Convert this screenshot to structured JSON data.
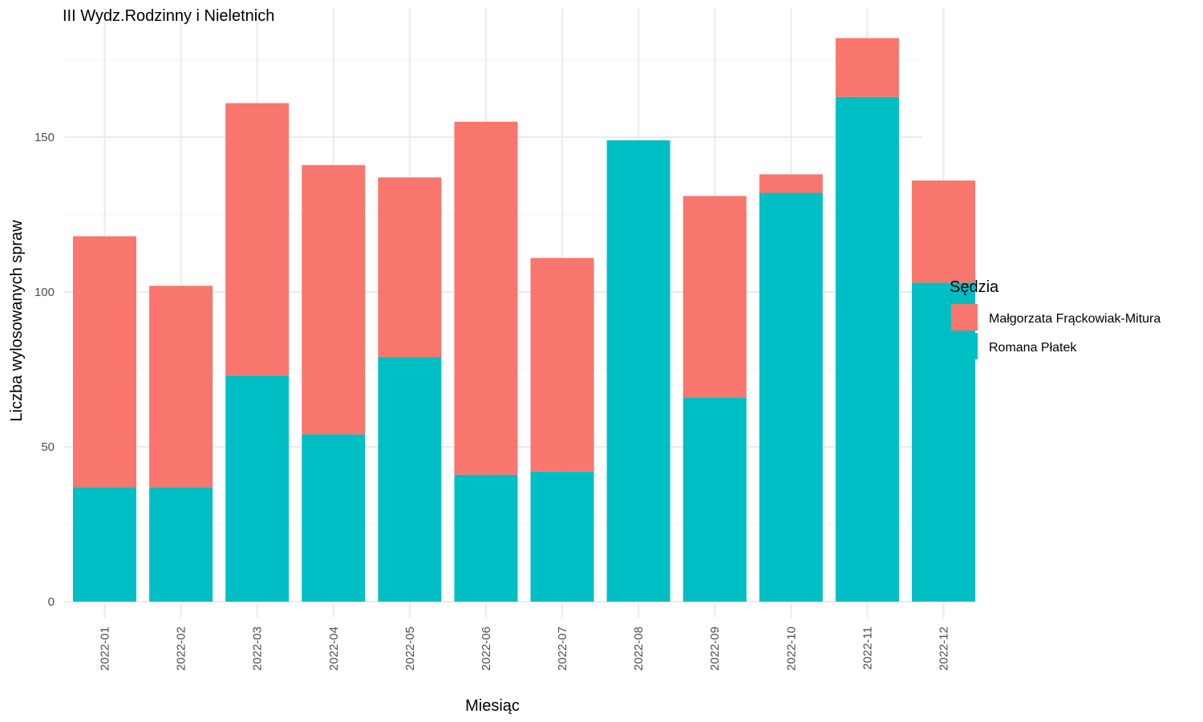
{
  "chart_data": {
    "type": "bar",
    "stacked": true,
    "title": "III Wydz.Rodzinny i Nieletnich",
    "xlabel": "Miesiąc",
    "ylabel": "Liczba wylosowanych spraw",
    "categories": [
      "2022-01",
      "2022-02",
      "2022-03",
      "2022-04",
      "2022-05",
      "2022-06",
      "2022-07",
      "2022-08",
      "2022-09",
      "2022-10",
      "2022-11",
      "2022-12"
    ],
    "series": [
      {
        "name": "Romana Płatek",
        "color": "#00BFC4",
        "values": [
          37,
          37,
          73,
          54,
          79,
          41,
          42,
          149,
          66,
          132,
          163,
          103
        ]
      },
      {
        "name": "Małgorzata Frąckowiak-Mitura",
        "color": "#F8766D",
        "values": [
          81,
          65,
          88,
          87,
          58,
          114,
          69,
          0,
          65,
          6,
          19,
          33
        ]
      }
    ],
    "ylim": [
      0,
      188
    ],
    "yticks": [
      0,
      50,
      100,
      150
    ],
    "grid": true,
    "legend": {
      "title": "Sędzia",
      "position": "right",
      "entries": [
        {
          "label": "Małgorzata Frąckowiak-Mitura",
          "color": "#F8766D"
        },
        {
          "label": "Romana Płatek",
          "color": "#00BFC4"
        }
      ]
    }
  }
}
